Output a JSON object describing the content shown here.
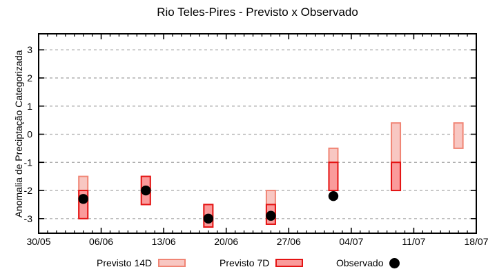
{
  "chart_data": {
    "type": "bar",
    "title": "Rio Teles-Pires - Previsto x Observado",
    "xlabel": "",
    "ylabel": "Anomalia de Preciptação Categorizada",
    "ylim": [
      -3.52,
      3.57
    ],
    "yticks": [
      3,
      2,
      1,
      0,
      -1,
      -2,
      -3
    ],
    "xlim_days": [
      0,
      49
    ],
    "xticks": [
      {
        "day": 0,
        "label": "30/05"
      },
      {
        "day": 7,
        "label": "06/06"
      },
      {
        "day": 14,
        "label": "13/06"
      },
      {
        "day": 21,
        "label": "20/06"
      },
      {
        "day": 28,
        "label": "27/06"
      },
      {
        "day": 35,
        "label": "04/07"
      },
      {
        "day": 42,
        "label": "11/07"
      },
      {
        "day": 49,
        "label": "18/07"
      }
    ],
    "minor_tick_interval_days": 1,
    "grid": "horizontal-dashed",
    "grid_color": "#b0b0b0",
    "border_color": "#000000",
    "legend_position": "bottom-center",
    "series": [
      {
        "name": "Previsto 14D",
        "type": "range-bar",
        "fill": "#f8c7c2",
        "stroke": "#f08575",
        "points": [
          {
            "date": "04/06",
            "day": 5,
            "low": -3.0,
            "high": -1.5
          },
          {
            "date": "11/06",
            "day": 12,
            "low": -2.5,
            "high": -1.5
          },
          {
            "date": "18/06",
            "day": 19,
            "low": -3.3,
            "high": -2.5
          },
          {
            "date": "25/06",
            "day": 26,
            "low": -3.2,
            "high": -2.0
          },
          {
            "date": "02/07",
            "day": 33,
            "low": -2.0,
            "high": -0.5
          },
          {
            "date": "09/07",
            "day": 40,
            "low": -2.0,
            "high": 0.4
          },
          {
            "date": "16/07",
            "day": 47,
            "low": -0.5,
            "high": 0.4
          }
        ]
      },
      {
        "name": "Previsto 7D",
        "type": "range-bar",
        "fill": "#fa9b9b",
        "stroke": "#e41414",
        "points": [
          {
            "date": "04/06",
            "day": 5,
            "low": -3.0,
            "high": -2.0
          },
          {
            "date": "11/06",
            "day": 12,
            "low": -2.5,
            "high": -1.5
          },
          {
            "date": "18/06",
            "day": 19,
            "low": -3.3,
            "high": -2.5
          },
          {
            "date": "25/06",
            "day": 26,
            "low": -3.2,
            "high": -2.5
          },
          {
            "date": "02/07",
            "day": 33,
            "low": -2.0,
            "high": -1.0
          },
          {
            "date": "09/07",
            "day": 40,
            "low": -2.0,
            "high": -1.0
          }
        ]
      },
      {
        "name": "Observado",
        "type": "scatter",
        "color": "#000000",
        "points": [
          {
            "date": "04/06",
            "day": 5,
            "value": -2.3
          },
          {
            "date": "11/06",
            "day": 12,
            "value": -2.0
          },
          {
            "date": "18/06",
            "day": 19,
            "value": -3.0
          },
          {
            "date": "25/06",
            "day": 26,
            "value": -2.9
          },
          {
            "date": "02/07",
            "day": 33,
            "value": -2.2
          }
        ]
      }
    ]
  }
}
